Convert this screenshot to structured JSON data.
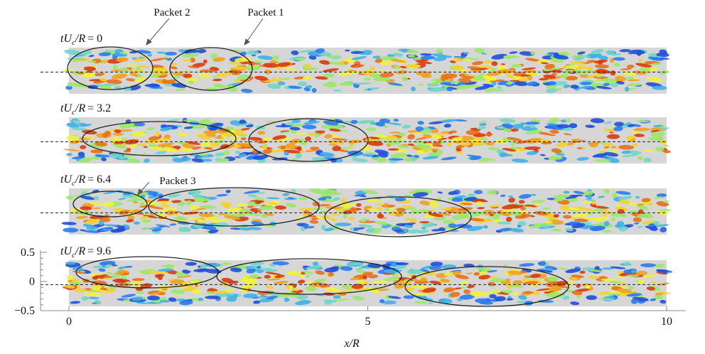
{
  "time_label": {
    "var": "tU",
    "sub": "c",
    "rest": "/R"
  },
  "panels": [
    {
      "time": "= 0"
    },
    {
      "time": "= 3.2"
    },
    {
      "time": "= 6.4"
    },
    {
      "time": "= 9.6"
    }
  ],
  "annotations": [
    "Packet 2",
    "Packet 1",
    "Packet 3"
  ],
  "x_axis": {
    "label": "x/R",
    "lim": [
      0,
      10
    ],
    "ticks": [
      0,
      5,
      10
    ]
  },
  "y_axis": {
    "lim": [
      -0.5,
      0.5
    ],
    "ticks": [
      0.5,
      0,
      {
        "value": -0.5,
        "label": "−0.5"
      }
    ]
  }
}
